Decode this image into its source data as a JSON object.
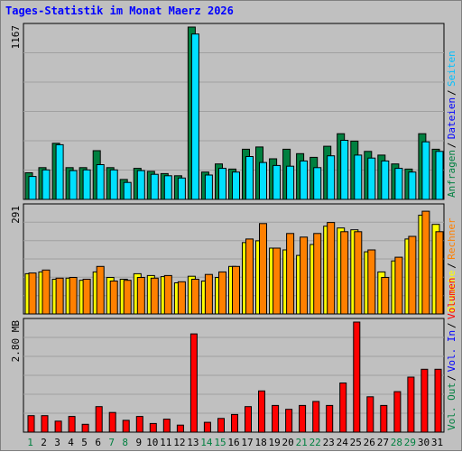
{
  "title": "Tages-Statistik im Monat Maerz 2026",
  "colors": {
    "background": "#c0c0c0",
    "panel": "#c0c0c0",
    "grid": "#a0a0a0",
    "title": "#0000ff",
    "anfragen": "#008040",
    "dateien": "#00e0ff",
    "seiten": "#00c0ff",
    "besuche": "#ffff00",
    "rechner": "#ff8000",
    "volumen_out": "#ff8000",
    "volumen_in": "#ff0000",
    "weekend_label": "#008040",
    "weekday_label": "#000000"
  },
  "legend_right": {
    "top": [
      {
        "text": "Anfragen",
        "color": "#008040"
      },
      {
        "text": "Dateien",
        "color": "#0000ff"
      },
      {
        "text": "Seiten",
        "color": "#00c0ff"
      }
    ],
    "middle": [
      {
        "text": "Besuche",
        "color": "#ffff00"
      },
      {
        "text": "Rechner",
        "color": "#ff8000"
      }
    ],
    "bottom": [
      {
        "text": "Vol. Out",
        "color": "#008040"
      },
      {
        "text": "Vol. In",
        "color": "#0000ff"
      },
      {
        "text": "Volumen",
        "color": "#ff0000"
      }
    ]
  },
  "chart_data": [
    {
      "type": "bar",
      "panel": "Anfragen / Dateien / Seiten",
      "ylabel": "1167",
      "ylim": [
        0,
        1167
      ],
      "categories": [
        "1",
        "2",
        "3",
        "4",
        "5",
        "6",
        "7",
        "8",
        "9",
        "10",
        "11",
        "12",
        "13",
        "14",
        "15",
        "16",
        "17",
        "18",
        "19",
        "20",
        "21",
        "22",
        "23",
        "24",
        "25",
        "26",
        "27",
        "28",
        "29",
        "30",
        "31"
      ],
      "series": [
        {
          "name": "Anfragen",
          "values": [
            180,
            215,
            380,
            215,
            215,
            330,
            215,
            135,
            210,
            190,
            175,
            160,
            1167,
            185,
            240,
            205,
            340,
            355,
            275,
            340,
            310,
            285,
            360,
            445,
            395,
            325,
            300,
            240,
            205,
            445,
            340
          ]
        },
        {
          "name": "Dateien",
          "values": [
            155,
            200,
            370,
            195,
            200,
            235,
            200,
            115,
            195,
            170,
            160,
            145,
            1120,
            165,
            210,
            185,
            290,
            250,
            230,
            225,
            260,
            215,
            295,
            400,
            300,
            280,
            260,
            210,
            185,
            390,
            325
          ]
        }
      ],
      "weekend_days": [
        "1",
        "7",
        "8",
        "14",
        "15",
        "21",
        "22",
        "28",
        "29"
      ]
    },
    {
      "type": "bar",
      "panel": "Besuche / Rechner",
      "ylabel": "291",
      "ylim": [
        0,
        291
      ],
      "categories": [
        "1",
        "2",
        "3",
        "4",
        "5",
        "6",
        "7",
        "8",
        "9",
        "10",
        "11",
        "12",
        "13",
        "14",
        "15",
        "16",
        "17",
        "18",
        "19",
        "20",
        "21",
        "22",
        "23",
        "24",
        "25",
        "26",
        "27",
        "28",
        "29",
        "30",
        "31"
      ],
      "series": [
        {
          "name": "Besuche",
          "values": [
            110,
            115,
            95,
            98,
            92,
            115,
            100,
            95,
            110,
            105,
            102,
            85,
            103,
            90,
            100,
            130,
            195,
            200,
            180,
            175,
            160,
            190,
            240,
            235,
            230,
            170,
            115,
            145,
            205,
            270,
            245
          ]
        },
        {
          "name": "Rechner",
          "values": [
            112,
            120,
            98,
            100,
            95,
            130,
            90,
            92,
            100,
            98,
            105,
            88,
            95,
            108,
            115,
            130,
            205,
            247,
            180,
            220,
            210,
            220,
            250,
            225,
            225,
            175,
            100,
            155,
            212,
            281,
            225
          ]
        }
      ]
    },
    {
      "type": "bar",
      "panel": "Volumen",
      "ylabel": "2.80 MB",
      "ylim": [
        0,
        2.8
      ],
      "categories": [
        "1",
        "2",
        "3",
        "4",
        "5",
        "6",
        "7",
        "8",
        "9",
        "10",
        "11",
        "12",
        "13",
        "14",
        "15",
        "16",
        "17",
        "18",
        "19",
        "20",
        "21",
        "22",
        "23",
        "24",
        "25",
        "26",
        "27",
        "28",
        "29",
        "30",
        "31"
      ],
      "series": [
        {
          "name": "Volumen",
          "values": [
            0.42,
            0.42,
            0.28,
            0.4,
            0.2,
            0.65,
            0.5,
            0.3,
            0.4,
            0.22,
            0.33,
            0.18,
            2.5,
            0.25,
            0.35,
            0.45,
            0.65,
            1.05,
            0.68,
            0.58,
            0.68,
            0.78,
            0.68,
            1.25,
            2.8,
            0.9,
            0.68,
            1.03,
            1.4,
            1.6,
            1.6
          ]
        }
      ]
    }
  ]
}
